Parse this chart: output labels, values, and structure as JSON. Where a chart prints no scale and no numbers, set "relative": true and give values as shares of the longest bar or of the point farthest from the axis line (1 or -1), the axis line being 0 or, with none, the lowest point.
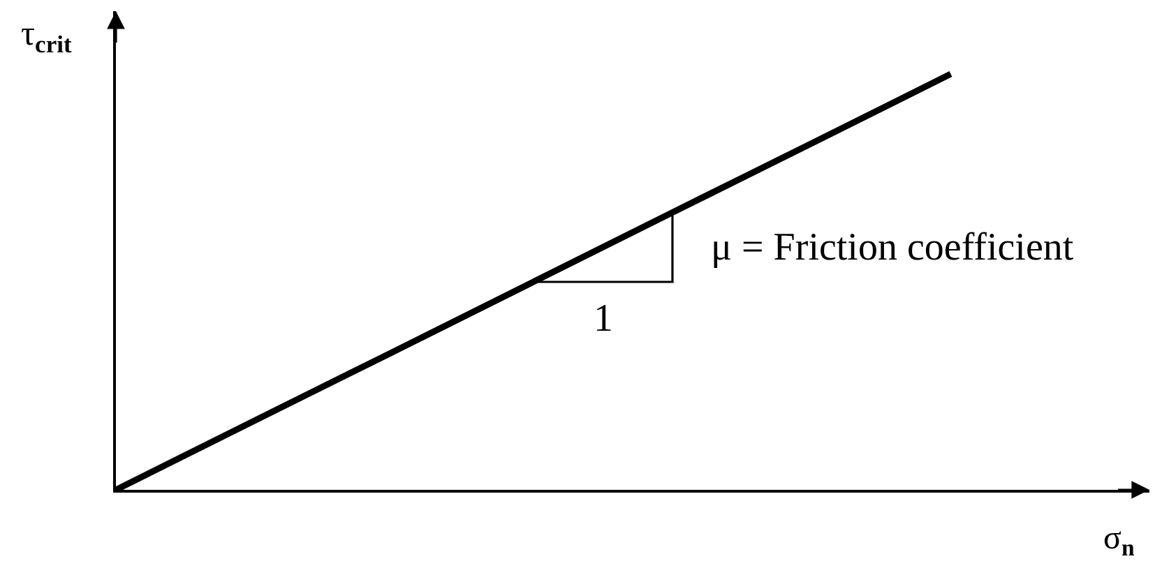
{
  "chart_data": {
    "type": "line",
    "relative": true,
    "xlabel": "σ$_{n}$",
    "ylabel": "τ$_{crit}$",
    "categories": [
      null,
      null,
      null,
      null,
      null,
      null,
      null
    ],
    "series": [
      {
        "color": "#000000",
        "values": [
          0,
          0.167,
          0.333,
          0.5,
          0.667,
          0.833,
          1
        ]
      },
      {
        "type": "step",
        "color": "#000000",
        "values": [
          null,
          null,
          null,
          0.5,
          0.667,
          null,
          null
        ]
      }
    ],
    "annotations": [
      "1",
      "μ = Friction coefficient"
    ]
  }
}
